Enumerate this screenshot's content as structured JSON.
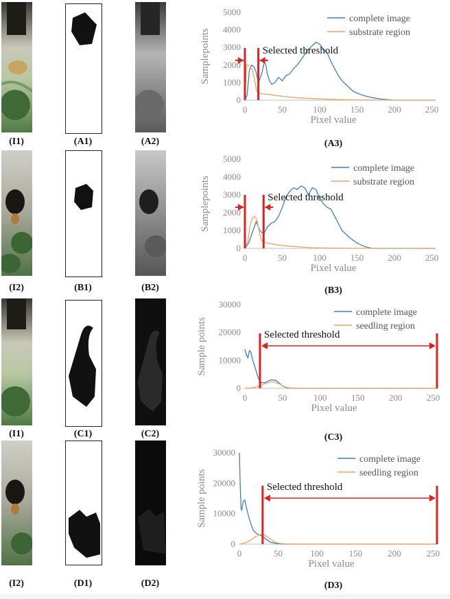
{
  "labels": {
    "I1": "(I1)",
    "A1": "(A1)",
    "A2": "(A2)",
    "A3": "(A3)",
    "I2": "(I2)",
    "B1": "(B1)",
    "B2": "(B2)",
    "B3": "(B3)",
    "I1b": "(I1)",
    "C1": "(C1)",
    "C2": "(C2)",
    "C3": "(C3)",
    "I2b": "(I2)",
    "D1": "(D1)",
    "D2": "(D2)",
    "D3": "(D3)"
  },
  "colors": {
    "complete": "#3b7fc4",
    "region": "#f0a35e",
    "threshold": "#e02020"
  },
  "chart_data": [
    {
      "id": "A3",
      "type": "line",
      "ylabel": "Samplepoints",
      "xlabel": "Pixel value",
      "xlim": [
        0,
        255
      ],
      "xticks": [
        0,
        50,
        100,
        150,
        200,
        250
      ],
      "ylim": [
        0,
        5000
      ],
      "yticks": [
        0,
        1000,
        2000,
        3000,
        4000,
        5000
      ],
      "annotation": "Selected threshold",
      "threshold_range": [
        0,
        18
      ],
      "series": [
        {
          "name": "complete image",
          "color": "#3b7fc4",
          "x": [
            0,
            3,
            6,
            9,
            12,
            15,
            18,
            20,
            23,
            26,
            28,
            30,
            33,
            36,
            40,
            45,
            50,
            55,
            60,
            65,
            70,
            75,
            80,
            85,
            90,
            95,
            100,
            105,
            110,
            115,
            120,
            125,
            130,
            135,
            140,
            145,
            150,
            160,
            170,
            180,
            190,
            200,
            210,
            255
          ],
          "y": [
            0,
            300,
            1700,
            2000,
            1900,
            1600,
            1000,
            1200,
            1600,
            2200,
            2000,
            1500,
            1100,
            900,
            1000,
            1300,
            1100,
            1400,
            1500,
            1800,
            2000,
            2300,
            2600,
            2900,
            3100,
            3300,
            3200,
            2900,
            2700,
            2200,
            1800,
            1400,
            1100,
            900,
            700,
            500,
            400,
            250,
            150,
            80,
            30,
            0,
            0,
            0
          ]
        },
        {
          "name": "substrate region",
          "color": "#f0a35e",
          "x": [
            0,
            2,
            4,
            6,
            8,
            10,
            12,
            14,
            16,
            18,
            20,
            25,
            30,
            40,
            50,
            60,
            80,
            100,
            130,
            160,
            200,
            255
          ],
          "y": [
            0,
            2000,
            2000,
            1950,
            1850,
            1700,
            1350,
            900,
            500,
            420,
            380,
            360,
            340,
            280,
            220,
            170,
            110,
            70,
            30,
            10,
            0,
            0
          ]
        }
      ]
    },
    {
      "id": "B3",
      "type": "line",
      "ylabel": "Samplepoints",
      "xlabel": "Pixel value",
      "xlim": [
        0,
        255
      ],
      "xticks": [
        0,
        50,
        100,
        150,
        200,
        250
      ],
      "ylim": [
        0,
        5000
      ],
      "yticks": [
        0,
        1000,
        2000,
        3000,
        4000,
        5000
      ],
      "annotation": "Selected threshold",
      "threshold_range": [
        0,
        25
      ],
      "series": [
        {
          "name": "complete image",
          "color": "#3b7fc4",
          "x": [
            0,
            5,
            10,
            15,
            20,
            25,
            30,
            35,
            40,
            45,
            50,
            55,
            60,
            65,
            70,
            75,
            80,
            85,
            90,
            95,
            100,
            105,
            110,
            115,
            120,
            125,
            130,
            140,
            150,
            160,
            170,
            255
          ],
          "y": [
            0,
            300,
            900,
            1500,
            1000,
            800,
            1200,
            1400,
            1500,
            1800,
            2300,
            2900,
            3200,
            3400,
            3300,
            3500,
            3400,
            3000,
            3400,
            3300,
            2800,
            2500,
            2300,
            2200,
            1800,
            1400,
            1000,
            600,
            300,
            100,
            0,
            0
          ]
        },
        {
          "name": "substrate region",
          "color": "#f0a35e",
          "x": [
            0,
            4,
            7,
            10,
            13,
            16,
            18,
            20,
            22,
            25,
            30,
            40,
            50,
            70,
            90,
            120,
            170,
            255
          ],
          "y": [
            0,
            400,
            1300,
            1700,
            1800,
            1600,
            1200,
            800,
            450,
            350,
            300,
            220,
            160,
            90,
            40,
            10,
            0,
            0
          ]
        }
      ]
    },
    {
      "id": "C3",
      "type": "line",
      "ylabel": "Sample points",
      "xlabel": "Pixel value",
      "xlim": [
        0,
        255
      ],
      "xticks": [
        0,
        50,
        100,
        150,
        200,
        250
      ],
      "ylim": [
        0,
        30000
      ],
      "yticks": [
        0,
        10000,
        20000,
        30000
      ],
      "annotation": "Selected threshold",
      "threshold_range": [
        20,
        255
      ],
      "series": [
        {
          "name": "complete image",
          "color": "#3b7fc4",
          "x": [
            0,
            2,
            4,
            6,
            8,
            10,
            14,
            18,
            22,
            26,
            30,
            34,
            38,
            42,
            46,
            50,
            55,
            60,
            70,
            255
          ],
          "y": [
            14000,
            12000,
            11000,
            13500,
            13000,
            10500,
            7000,
            3500,
            2000,
            2000,
            2500,
            3000,
            3000,
            2700,
            1800,
            800,
            300,
            100,
            0,
            0
          ]
        },
        {
          "name": "seedling region",
          "color": "#f0a35e",
          "x": [
            0,
            10,
            20,
            25,
            30,
            35,
            40,
            45,
            50,
            55,
            60,
            70,
            255
          ],
          "y": [
            0,
            200,
            800,
            1500,
            2000,
            2300,
            2200,
            1700,
            900,
            400,
            150,
            0,
            0
          ]
        }
      ]
    },
    {
      "id": "D3",
      "type": "line",
      "ylabel": "Sample points",
      "xlabel": "Pixel value",
      "xlim": [
        0,
        255
      ],
      "xticks": [
        0,
        50,
        100,
        150,
        200,
        250
      ],
      "ylim": [
        0,
        30000
      ],
      "yticks": [
        0,
        10000,
        20000,
        30000
      ],
      "annotation": "Selected threshold",
      "threshold_range": [
        30,
        255
      ],
      "series": [
        {
          "name": "complete image",
          "color": "#3b7fc4",
          "x": [
            0,
            1,
            2,
            3,
            5,
            7,
            9,
            12,
            15,
            18,
            22,
            26,
            30,
            35,
            40,
            50,
            60,
            255
          ],
          "y": [
            30000,
            20000,
            12000,
            11000,
            14000,
            14500,
            12000,
            9000,
            6500,
            4500,
            3500,
            3000,
            2500,
            1500,
            600,
            100,
            0,
            0
          ]
        },
        {
          "name": "seedling region",
          "color": "#f0a35e",
          "x": [
            0,
            5,
            10,
            15,
            20,
            25,
            28,
            32,
            36,
            40,
            45,
            50,
            60,
            70,
            255
          ],
          "y": [
            0,
            200,
            700,
            1400,
            2300,
            3000,
            3200,
            3000,
            2400,
            1600,
            800,
            300,
            50,
            0,
            0
          ]
        }
      ]
    }
  ]
}
